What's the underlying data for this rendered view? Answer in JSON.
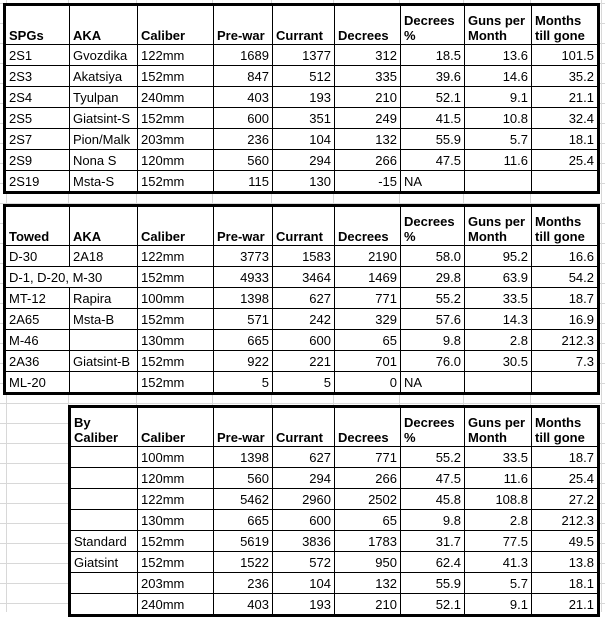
{
  "colors": {
    "gridline": "#d8d8d8",
    "table_border": "#000000",
    "text": "#000000",
    "background": "#ffffff"
  },
  "tables": [
    {
      "name": "spgs-table",
      "headers": [
        "SPGs",
        "AKA",
        "Caliber",
        "Pre-war",
        "Currant",
        "Decrees",
        "Decrees\n%",
        "Guns per\nMonth",
        "Months\ntill gone"
      ],
      "rows": [
        [
          "2S1",
          "Gvozdika",
          "122mm",
          "1689",
          "1377",
          "312",
          "18.5",
          "13.6",
          "101.5"
        ],
        [
          "2S3",
          "Akatsiya",
          "152mm",
          "847",
          "512",
          "335",
          "39.6",
          "14.6",
          "35.2"
        ],
        [
          "2S4",
          "Tyulpan",
          "240mm",
          "403",
          "193",
          "210",
          "52.1",
          "9.1",
          "21.1"
        ],
        [
          "2S5",
          "Giatsint-S",
          "152mm",
          "600",
          "351",
          "249",
          "41.5",
          "10.8",
          "32.4"
        ],
        [
          "2S7",
          "Pion/Malk",
          "203mm",
          "236",
          "104",
          "132",
          "55.9",
          "5.7",
          "18.1"
        ],
        [
          "2S9",
          "Nona S",
          "120mm",
          "560",
          "294",
          "266",
          "47.5",
          "11.6",
          "25.4"
        ],
        [
          "2S19",
          "Msta-S",
          "152mm",
          "115",
          "130",
          "-15",
          "NA",
          "",
          ""
        ]
      ],
      "merged": []
    },
    {
      "name": "towed-table",
      "headers": [
        "Towed",
        "AKA",
        "Caliber",
        "Pre-war",
        "Currant",
        "Decrees",
        "Decrees\n%",
        "Guns per\nMonth",
        "Months\ntill gone"
      ],
      "rows": [
        [
          "D-30",
          "2A18",
          "122mm",
          "3773",
          "1583",
          "2190",
          "58.0",
          "95.2",
          "16.6"
        ],
        [
          "D-1, D-20, M-30",
          "",
          "152mm",
          "4933",
          "3464",
          "1469",
          "29.8",
          "63.9",
          "54.2"
        ],
        [
          "MT-12",
          "Rapira",
          "100mm",
          "1398",
          "627",
          "771",
          "55.2",
          "33.5",
          "18.7"
        ],
        [
          "2A65",
          "Msta-B",
          "152mm",
          "571",
          "242",
          "329",
          "57.6",
          "14.3",
          "16.9"
        ],
        [
          "M-46",
          "",
          "130mm",
          "665",
          "600",
          "65",
          "9.8",
          "2.8",
          "212.3"
        ],
        [
          "2A36",
          "Giatsint-B",
          "152mm",
          "922",
          "221",
          "701",
          "76.0",
          "30.5",
          "7.3"
        ],
        [
          "ML-20",
          "",
          "152mm",
          "5",
          "5",
          "0",
          "NA",
          "",
          ""
        ]
      ],
      "merged": [
        {
          "row": 1,
          "col": 0,
          "colspan": 2
        }
      ]
    },
    {
      "name": "by-caliber-table",
      "headers": [
        "By\nCaliber",
        "Caliber",
        "Pre-war",
        "Currant",
        "Decrees",
        "Decrees\n%",
        "Guns per\nMonth",
        "Months\ntill gone"
      ],
      "rows": [
        [
          "",
          "100mm",
          "1398",
          "627",
          "771",
          "55.2",
          "33.5",
          "18.7"
        ],
        [
          "",
          "120mm",
          "560",
          "294",
          "266",
          "47.5",
          "11.6",
          "25.4"
        ],
        [
          "",
          "122mm",
          "5462",
          "2960",
          "2502",
          "45.8",
          "108.8",
          "27.2"
        ],
        [
          "",
          "130mm",
          "665",
          "600",
          "65",
          "9.8",
          "2.8",
          "212.3"
        ],
        [
          "Standard",
          "152mm",
          "5619",
          "3836",
          "1783",
          "31.7",
          "77.5",
          "49.5"
        ],
        [
          "Giatsint",
          "152mm",
          "1522",
          "572",
          "950",
          "62.4",
          "41.3",
          "13.8"
        ],
        [
          "",
          "203mm",
          "236",
          "104",
          "132",
          "55.9",
          "5.7",
          "18.1"
        ],
        [
          "",
          "240mm",
          "403",
          "193",
          "210",
          "52.1",
          "9.1",
          "21.1"
        ]
      ],
      "merged": []
    }
  ]
}
